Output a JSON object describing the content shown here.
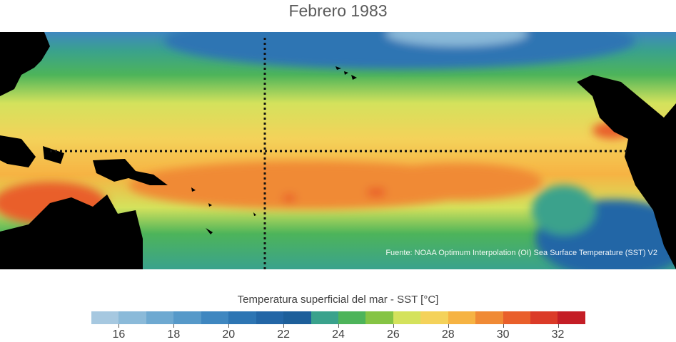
{
  "title": "Febrero 1983",
  "source": "Fuente: NOAA Optimum Interpolation (OI) Sea Surface Temperature (SST) V2",
  "colorbar": {
    "title": "Temperatura superficial del mar - SST  [°C]",
    "min": 15,
    "max": 33,
    "step": 1,
    "colors": [
      "#a6c8e0",
      "#8bbad9",
      "#6ea9d1",
      "#5699c9",
      "#3f87c0",
      "#2d75b3",
      "#2366a6",
      "#1d5f9a",
      "#3aa28c",
      "#4db45a",
      "#85c444",
      "#d4e25c",
      "#f4d25a",
      "#f6b343",
      "#f08a35",
      "#e95f2b",
      "#db3b28",
      "#c41e26"
    ],
    "tick_labels": [
      "16",
      "18",
      "20",
      "22",
      "24",
      "26",
      "28",
      "30",
      "32"
    ],
    "tick_values": [
      16,
      18,
      20,
      22,
      24,
      26,
      28,
      30,
      32
    ]
  },
  "map": {
    "region": "Pacífico tropical",
    "land_color": "#000000",
    "reference_lines": "dotted"
  }
}
